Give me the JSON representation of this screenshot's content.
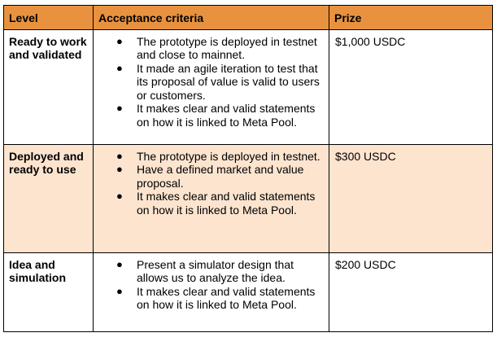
{
  "colors": {
    "header_bg": "#E8923F",
    "highlight_row_bg": "#FCE4CF",
    "row_bg": "#FFFFFF",
    "border": "#000000"
  },
  "table": {
    "headers": [
      "Level",
      "Acceptance criteria",
      "Prize"
    ],
    "rows": [
      {
        "level": "Ready to work and validated",
        "criteria": [
          "The prototype is deployed in testnet and close to mainnet.",
          "It made an agile iteration to test that its proposal of value is valid to users or customers.",
          "It makes clear and valid statements on how it is linked to Meta Pool."
        ],
        "prize": "$1,000 USDC",
        "highlighted": false
      },
      {
        "level": "Deployed and ready to use",
        "criteria": [
          "The prototype is deployed in testnet.",
          "Have a defined market and value proposal.",
          "It makes clear and valid statements on how it is linked to Meta Pool."
        ],
        "prize": "$300 USDC",
        "highlighted": true
      },
      {
        "level": "Idea and simulation",
        "criteria": [
          "Present a simulator design that allows us to analyze the idea.",
          "It makes clear and valid statements on how it is linked to Meta Pool."
        ],
        "prize": "$200 USDC",
        "highlighted": false
      }
    ]
  }
}
